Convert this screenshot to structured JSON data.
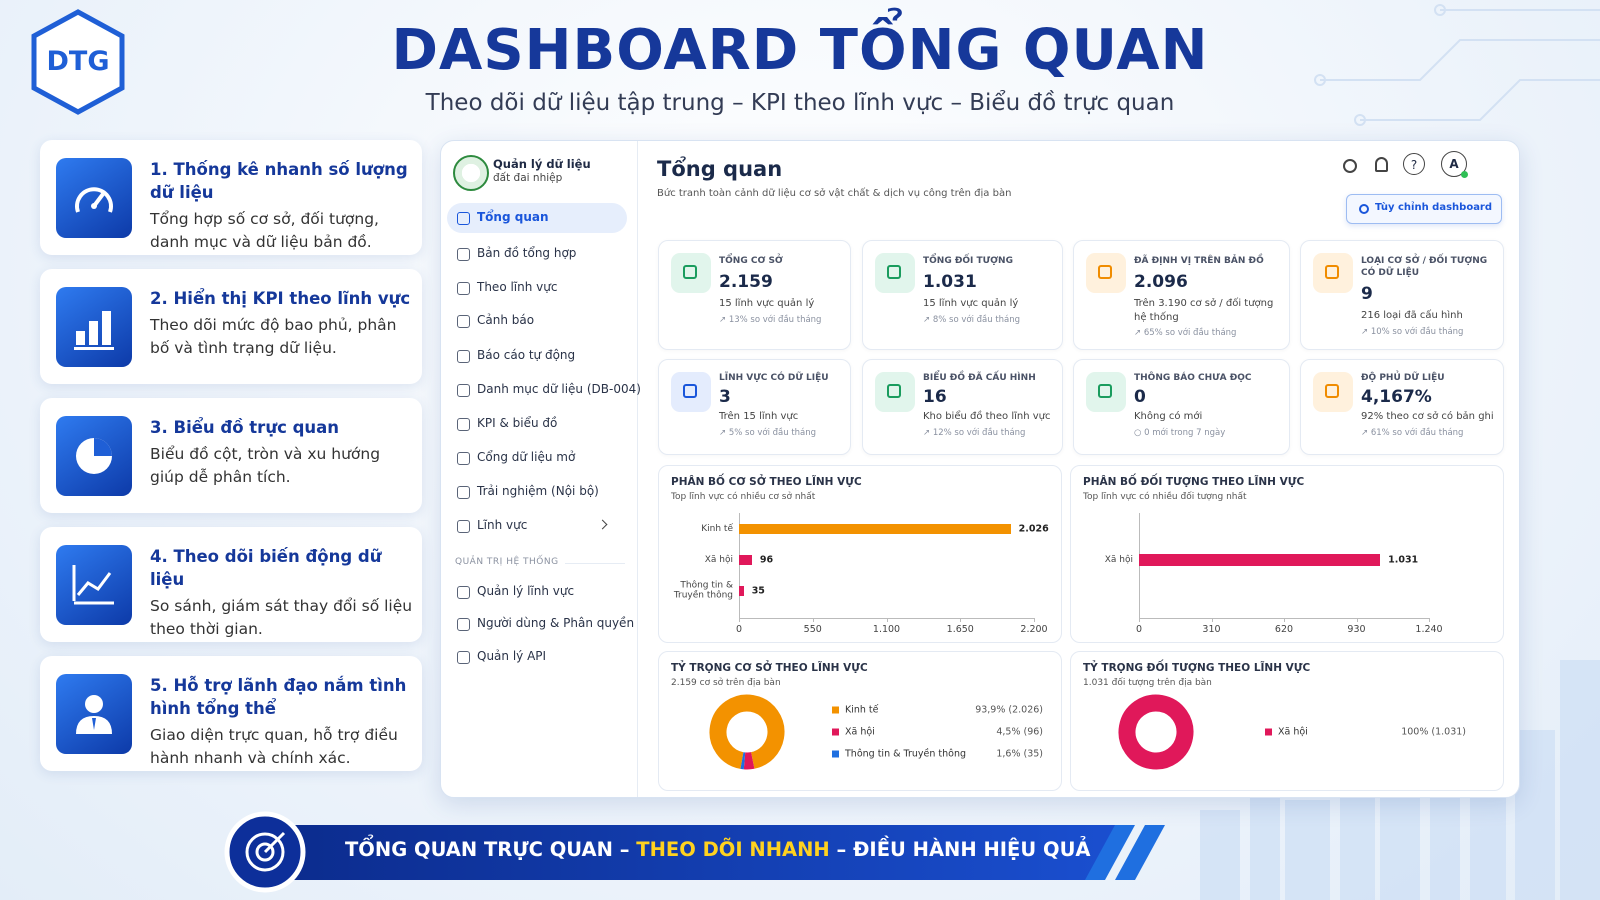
{
  "header": {
    "logo": "DTG",
    "title": "DASHBOARD TỔNG QUAN",
    "subtitle": "Theo dõi dữ liệu tập trung – KPI theo lĩnh vực – Biểu đồ trực quan"
  },
  "features": [
    {
      "title": "1. Thống kê nhanh số lượng dữ liệu",
      "desc": "Tổng hợp số cơ sở, đối tượng, danh mục và dữ liệu bản đồ."
    },
    {
      "title": "2. Hiển thị KPI theo lĩnh vực",
      "desc": "Theo dõi mức độ bao phủ, phân bố và tình trạng dữ liệu."
    },
    {
      "title": "3. Biểu đồ trực quan",
      "desc": "Biểu đồ cột, tròn và xu hướng giúp dễ phân tích."
    },
    {
      "title": "4. Theo dõi biến động dữ liệu",
      "desc": "So sánh, giám sát thay đổi số liệu theo thời gian."
    },
    {
      "title": "5. Hỗ trợ lãnh đạo nắm tình hình tổng thể",
      "desc": "Giao diện trực quan, hỗ trợ điều hành nhanh và chính xác."
    }
  ],
  "dashboard": {
    "brand": {
      "name": "Quản lý dữ liệu",
      "subtitle": "đất đai nhiệp"
    },
    "menu": [
      "Tổng quan",
      "Bản đồ tổng hợp",
      "Theo lĩnh vực",
      "Cảnh báo",
      "Báo cáo tự động",
      "Danh mục dữ liệu (DB-004)",
      "KPI & biểu đồ",
      "Cổng dữ liệu mở",
      "Trải nghiệm (Nội bộ)",
      "Lĩnh vực"
    ],
    "admin_section": "QUẢN TRỊ HỆ THỐNG",
    "admin_menu": [
      "Quản lý lĩnh vực",
      "Người dùng & Phân quyền",
      "Quản lý API"
    ],
    "page_title": "Tổng quan",
    "page_subtitle": "Bức tranh toàn cảnh dữ liệu cơ sở vật chất & dịch vụ công trên địa bàn",
    "help_icon": "?",
    "avatar": "A",
    "customize_button": "Tùy chỉnh dashboard",
    "kpis": [
      {
        "label": "TỔNG CƠ SỞ",
        "value": "2.159",
        "note": "15 lĩnh vực quản lý",
        "trend": "↗ 13% so với đầu tháng"
      },
      {
        "label": "TỔNG ĐỐI TƯỢNG",
        "value": "1.031",
        "note": "15 lĩnh vực quản lý",
        "trend": "↗ 8% so với đầu tháng"
      },
      {
        "label": "ĐÃ ĐỊNH VỊ TRÊN BẢN ĐỒ",
        "value": "2.096",
        "note": "Trên 3.190 cơ sở / đối tượng hệ thống",
        "trend": "↗ 65% so với đầu tháng"
      },
      {
        "label": "LOẠI CƠ SỞ / ĐỐI TƯỢNG CÓ DỮ LIỆU",
        "value": "9",
        "note": "216 loại đã cấu hình",
        "trend": "↗ 10% so với đầu tháng"
      },
      {
        "label": "LĨNH VỰC CÓ DỮ LIỆU",
        "value": "3",
        "note": "Trên 15 lĩnh vực",
        "trend": "↗ 5% so với đầu tháng"
      },
      {
        "label": "BIỂU ĐỒ ĐÃ CẤU HÌNH",
        "value": "16",
        "note": "Kho biểu đồ theo lĩnh vực",
        "trend": "↗ 12% so với đầu tháng"
      },
      {
        "label": "THÔNG BÁO CHƯA ĐỌC",
        "value": "0",
        "note": "Không có mới",
        "trend": "○ 0 mới trong 7 ngày"
      },
      {
        "label": "ĐỘ PHỦ DỮ LIỆU",
        "value": "4,167%",
        "note": "92% theo cơ sở có bản ghi",
        "trend": "↗ 61% so với đầu tháng"
      }
    ]
  },
  "chart_data": [
    {
      "type": "bar",
      "title": "PHÂN BỐ CƠ SỞ THEO LĨNH VỰC",
      "subtitle": "Top lĩnh vực có nhiều cơ sở nhất",
      "categories": [
        "Kinh tế",
        "Xã hội",
        "Thông tin & Truyền thông"
      ],
      "values": [
        2026,
        96,
        35
      ],
      "value_labels": [
        "2.026",
        "96",
        "35"
      ],
      "colors": [
        "#f39200",
        "#e0185a",
        "#e0185a"
      ],
      "xlim": [
        0,
        2200
      ],
      "xticks": [
        0,
        550,
        {
          "value": 1100,
          "label": "1.100"
        },
        {
          "value": 1650,
          "label": "1.650"
        },
        {
          "value": 2200,
          "label": "2.200"
        }
      ]
    },
    {
      "type": "bar",
      "title": "PHÂN BỐ ĐỐI TƯỢNG THEO LĨNH VỰC",
      "subtitle": "Top lĩnh vực có nhiều đối tượng nhất",
      "categories": [
        "Xã hội"
      ],
      "values": [
        1031
      ],
      "value_labels": [
        "1.031"
      ],
      "colors": [
        "#e0185a"
      ],
      "xlim": [
        0,
        1240
      ],
      "xticks": [
        0,
        310,
        620,
        930,
        {
          "value": 1240,
          "label": "1.240"
        }
      ]
    },
    {
      "type": "donut",
      "title": "TỶ TRỌNG CƠ SỞ THEO LĨNH VỰC",
      "subtitle": "2.159 cơ sở trên địa bàn",
      "categories": [
        "Kinh tế",
        "Xã hội",
        "Thông tin & Truyền thông"
      ],
      "values": [
        93.9,
        4.5,
        1.6
      ],
      "value_labels": [
        "93,9% (2.026)",
        "4,5% (96)",
        "1,6% (35)"
      ],
      "colors": [
        "#f39200",
        "#e0185a",
        "#1f6fe0"
      ]
    },
    {
      "type": "donut",
      "title": "TỶ TRỌNG ĐỐI TƯỢNG THEO LĨNH VỰC",
      "subtitle": "1.031 đối tượng trên địa bàn",
      "categories": [
        "Xã hội"
      ],
      "values": [
        100
      ],
      "value_labels": [
        "100% (1.031)"
      ],
      "colors": [
        "#e0185a"
      ]
    }
  ],
  "footer": {
    "parts": [
      "TỔNG QUAN TRỰC QUAN – ",
      "THEO DÕI NHANH",
      " – ĐIỀU HÀNH HIỆU QUẢ"
    ]
  }
}
